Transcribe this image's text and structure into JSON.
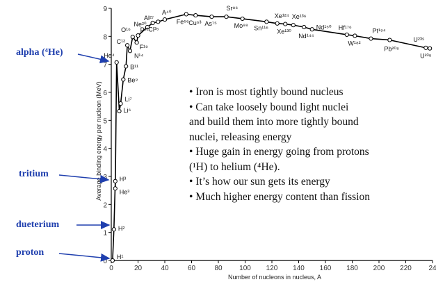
{
  "chart_data": {
    "type": "line",
    "xlabel": "Number of nucleons in nucleus, A",
    "ylabel": "Average binding energy per nucleon (MeV)",
    "xlim": [
      0,
      240
    ],
    "ylim": [
      0,
      9
    ],
    "x_ticks": [
      "0",
      "20",
      "40",
      "60",
      "80",
      "100",
      "120",
      "140",
      "160",
      "180",
      "200",
      "220",
      "24"
    ],
    "y_ticks": [
      "0",
      "1",
      "2",
      "3",
      "4",
      "5",
      "6",
      "7",
      "8",
      "9"
    ],
    "grid": false,
    "series": [
      {
        "points": [
          {
            "x": 1,
            "y": 0,
            "label": "H¹"
          },
          {
            "x": 2,
            "y": 1.11,
            "label": "H²"
          },
          {
            "x": 3,
            "y": 2.83,
            "label": "H³"
          },
          {
            "x": 3,
            "y": 2.57,
            "label": "He³"
          },
          {
            "x": 4,
            "y": 7.07,
            "label": "He⁴"
          },
          {
            "x": 6,
            "y": 5.33,
            "label": "Li⁶"
          },
          {
            "x": 7,
            "y": 5.6,
            "label": "Li⁷"
          },
          {
            "x": 9,
            "y": 6.46,
            "label": "Be⁹"
          },
          {
            "x": 11,
            "y": 6.93,
            "label": "B¹¹"
          },
          {
            "x": 12,
            "y": 7.68,
            "label": "C¹²"
          },
          {
            "x": 14,
            "y": 7.48,
            "label": "N¹⁴"
          },
          {
            "x": 16,
            "y": 7.98,
            "label": "O¹⁶"
          },
          {
            "x": 19,
            "y": 7.78,
            "label": "F¹⁹"
          },
          {
            "x": 20,
            "y": 8.03,
            "label": "Ne²⁰"
          },
          {
            "x": 27,
            "y": 8.33,
            "label": "Al²⁷"
          },
          {
            "x": 31,
            "y": 8.48,
            "label": "P³¹"
          },
          {
            "x": 35,
            "y": 8.52,
            "label": "Cl³⁵"
          },
          {
            "x": 40,
            "y": 8.6,
            "label": "A⁴⁰"
          },
          {
            "x": 56,
            "y": 8.79,
            "label": "Fe⁵⁶"
          },
          {
            "x": 63,
            "y": 8.75,
            "label": "Cu⁶³"
          },
          {
            "x": 75,
            "y": 8.7,
            "label": "As⁷⁵"
          },
          {
            "x": 86,
            "y": 8.7,
            "label": "Sr⁸⁶"
          },
          {
            "x": 98,
            "y": 8.63,
            "label": "Mo⁹⁸"
          },
          {
            "x": 116,
            "y": 8.52,
            "label": "Sn¹¹⁶"
          },
          {
            "x": 124,
            "y": 8.46,
            "label": "Xe¹²⁴"
          },
          {
            "x": 130,
            "y": 8.44,
            "label": "Xe¹³⁰"
          },
          {
            "x": 136,
            "y": 8.4,
            "label": "Xe¹³⁶"
          },
          {
            "x": 144,
            "y": 8.33,
            "label": "Nd¹⁴⁴"
          },
          {
            "x": 150,
            "y": 8.25,
            "label": "Nd¹⁵⁰"
          },
          {
            "x": 176,
            "y": 8.06,
            "label": "Hf¹⁷⁶"
          },
          {
            "x": 182,
            "y": 8.02,
            "label": "W¹⁸²"
          },
          {
            "x": 194,
            "y": 7.92,
            "label": "Pt¹⁹⁴"
          },
          {
            "x": 208,
            "y": 7.87,
            "label": "Pb²⁰⁸"
          },
          {
            "x": 235,
            "y": 7.59,
            "label": "U²³⁵"
          },
          {
            "x": 238,
            "y": 7.57,
            "label": "U²³⁸"
          }
        ]
      }
    ],
    "annotations": [
      {
        "text": "alpha (⁴He)",
        "points_to": "He⁴"
      },
      {
        "text": "tritium",
        "points_to": "H³"
      },
      {
        "text": "dueterium",
        "points_to": "H²"
      },
      {
        "text": "proton",
        "points_to": "H¹"
      }
    ],
    "colors": {
      "curve": "#000000",
      "arrows": "#1f3fae",
      "annotation_text": "#1f3fae"
    }
  },
  "notes": [
    "• Iron is most tightly bound nucleus",
    "• Can take loosely bound light nuclei",
    "and build them into more tightly bound",
    "nuclei, releasing energy",
    "• Huge gain in energy going from protons",
    "(¹H) to helium (⁴He).",
    "• It’s how our sun gets its energy",
    "• Much higher energy content than fission"
  ]
}
